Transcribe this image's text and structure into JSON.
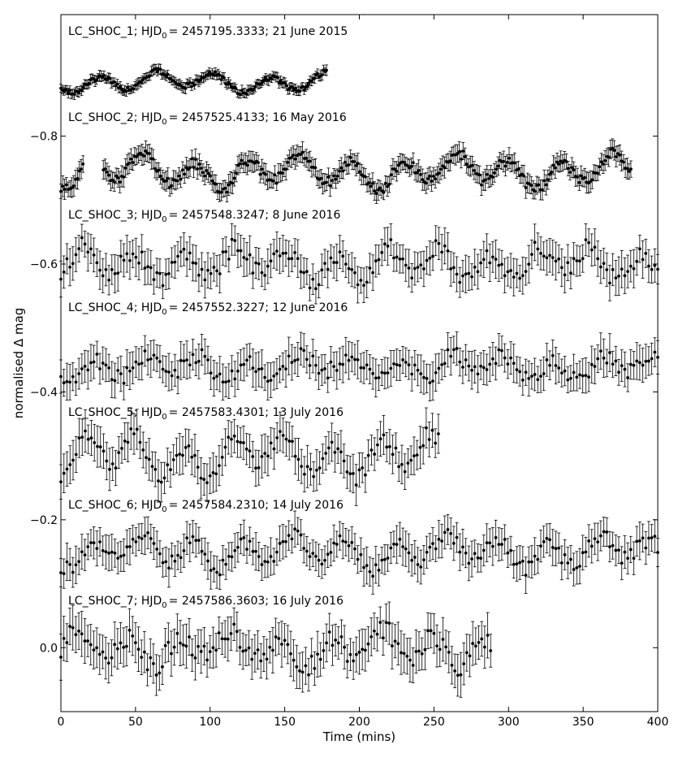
{
  "chart_data": {
    "type": "scatter",
    "xlabel": "Time (mins)",
    "ylabel": "normalised Δ mag",
    "xlim": [
      0,
      400
    ],
    "ylim": [
      0.1,
      -0.99
    ],
    "y_inverted": true,
    "grid": false,
    "x_ticks": [
      0,
      50,
      100,
      150,
      200,
      250,
      300,
      350,
      400
    ],
    "y_ticks": [
      -0.8,
      -0.6,
      -0.4,
      -0.2,
      0.0
    ],
    "x_tick_labels": [
      "0",
      "50",
      "100",
      "150",
      "200",
      "250",
      "300",
      "350",
      "400"
    ],
    "y_tick_labels": [
      "−0.8",
      "−0.6",
      "−0.4",
      "−0.2",
      "0.0"
    ],
    "marker_color": "#000000",
    "series": [
      {
        "label_prefix": "LC_SHOC_1; HJD",
        "label_sub": "0",
        "label_suffix": "= 2457195.3333; 21 June 2015",
        "x_range": [
          0,
          178
        ],
        "n_points": 180,
        "base": -0.885,
        "amp": 0.012,
        "period": 38,
        "phase": 0.4,
        "noise": 0.004,
        "err": 0.007
      },
      {
        "label_prefix": "LC_SHOC_2; HJD",
        "label_sub": "0",
        "label_suffix": "= 2457525.4133; 16 May 2016",
        "x_range": [
          0,
          382
        ],
        "n_points": 310,
        "gaps": [
          [
            16,
            28
          ]
        ],
        "base": -0.745,
        "amp": 0.02,
        "period": 35,
        "phase": 1.1,
        "noise": 0.008,
        "err": 0.014
      },
      {
        "label_prefix": "LC_SHOC_3; HJD",
        "label_sub": "0",
        "label_suffix": "= 2457548.3247; 8 June 2016",
        "x_range": [
          0,
          400
        ],
        "n_points": 200,
        "base": -0.6,
        "amp": 0.02,
        "period": 34,
        "phase": 2.0,
        "noise": 0.014,
        "err": 0.025
      },
      {
        "label_prefix": "LC_SHOC_4; HJD",
        "label_sub": "0",
        "label_suffix": "= 2457552.3227; 12 June 2016",
        "x_range": [
          0,
          400
        ],
        "n_points": 200,
        "base": -0.44,
        "amp": 0.015,
        "period": 34,
        "phase": 0.3,
        "noise": 0.012,
        "err": 0.025
      },
      {
        "label_prefix": "LC_SHOC_5; HJD",
        "label_sub": "0",
        "label_suffix": "= 2457583.4301; 13 July 2016",
        "x_range": [
          0,
          253
        ],
        "n_points": 125,
        "base": -0.3,
        "amp": 0.025,
        "period": 33,
        "phase": 1.5,
        "noise": 0.012,
        "err": 0.028
      },
      {
        "label_prefix": "LC_SHOC_6; HJD",
        "label_sub": "0",
        "label_suffix": "= 2457584.2310; 14 July 2016",
        "x_range": [
          0,
          400
        ],
        "n_points": 200,
        "base": -0.15,
        "amp": 0.018,
        "period": 34,
        "phase": 0.9,
        "noise": 0.012,
        "err": 0.025
      },
      {
        "label_prefix": "LC_SHOC_7; HJD",
        "label_sub": "0",
        "label_suffix": "= 2457586.3603; 16 July 2016",
        "x_range": [
          0,
          288
        ],
        "n_points": 145,
        "base": 0.0,
        "amp": 0.02,
        "period": 34,
        "phase": 2.6,
        "noise": 0.016,
        "err": 0.03
      }
    ]
  }
}
